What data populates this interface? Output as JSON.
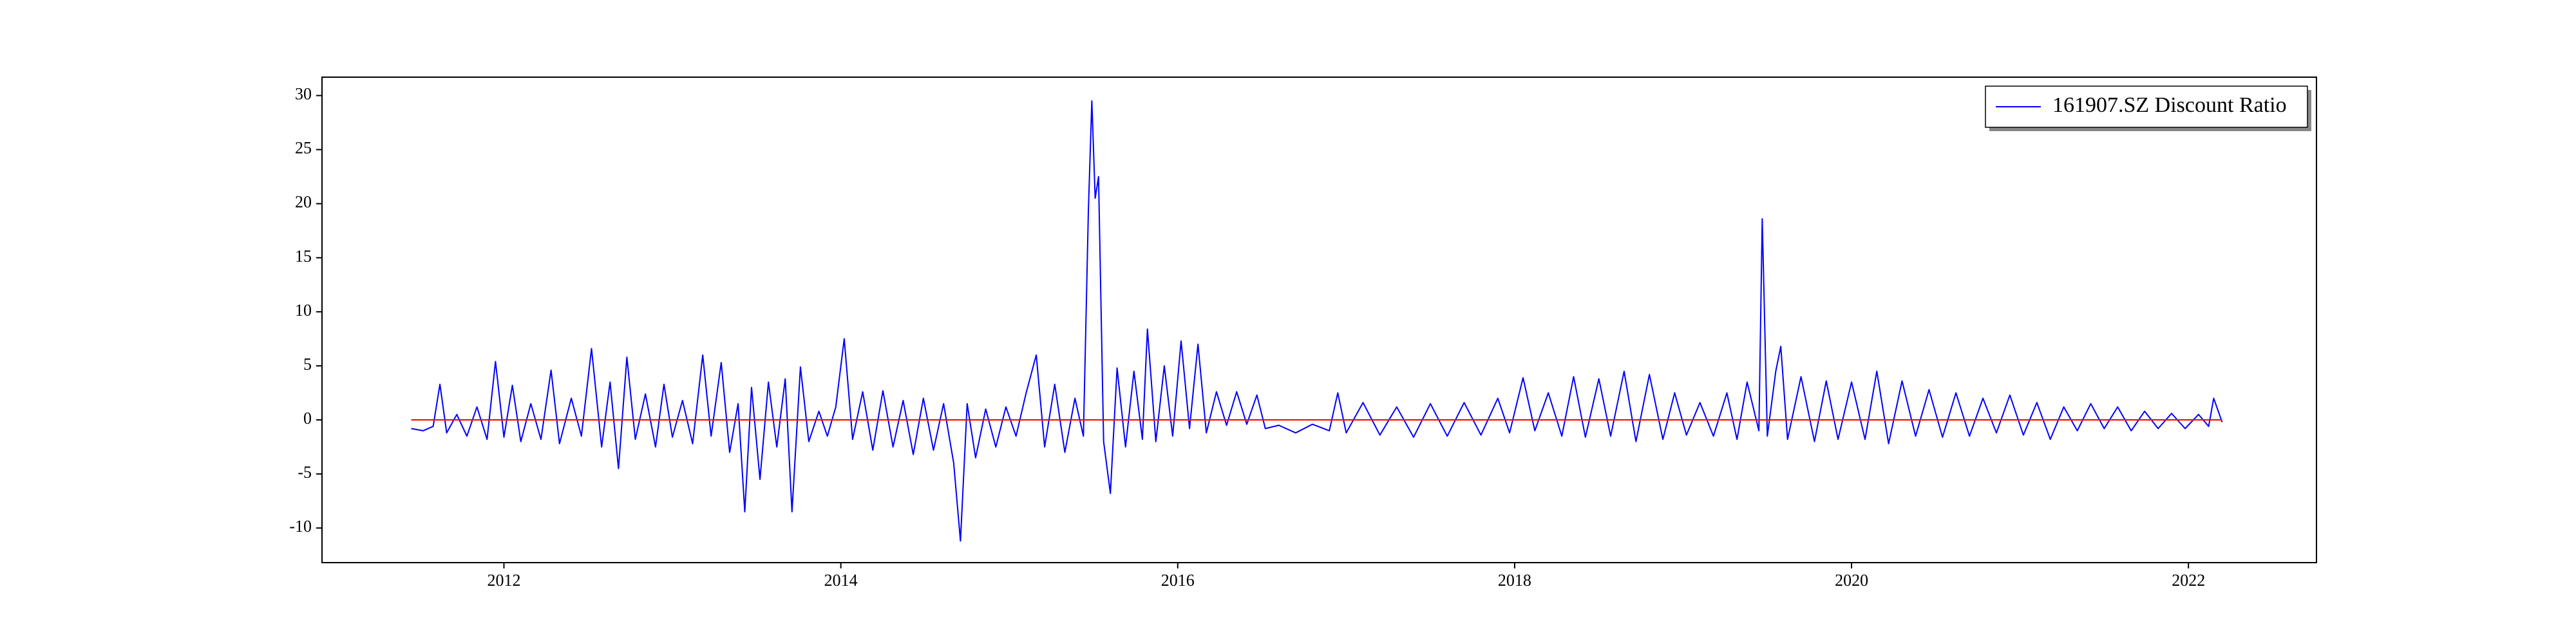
{
  "chart_data": {
    "type": "line",
    "xlim": [
      2010.92,
      2022.76
    ],
    "xticks": [
      2012,
      2014,
      2016,
      2018,
      2020,
      2022
    ],
    "ylim": [
      -13.2,
      31.7
    ],
    "yticks": [
      -10,
      -5,
      0,
      5,
      10,
      15,
      20,
      25,
      30
    ],
    "legend": "upper right",
    "series": [
      {
        "name": "161907.SZ Discount Ratio",
        "color": "#0000ff",
        "x": [
          2011.45,
          2011.52,
          2011.58,
          2011.62,
          2011.66,
          2011.72,
          2011.78,
          2011.84,
          2011.9,
          2011.95,
          2012.0,
          2012.05,
          2012.1,
          2012.16,
          2012.22,
          2012.28,
          2012.33,
          2012.4,
          2012.46,
          2012.52,
          2012.58,
          2012.63,
          2012.68,
          2012.73,
          2012.78,
          2012.84,
          2012.9,
          2012.95,
          2013.0,
          2013.06,
          2013.12,
          2013.18,
          2013.23,
          2013.29,
          2013.34,
          2013.39,
          2013.43,
          2013.47,
          2013.52,
          2013.57,
          2013.62,
          2013.67,
          2013.71,
          2013.76,
          2013.81,
          2013.87,
          2013.92,
          2013.97,
          2014.02,
          2014.07,
          2014.13,
          2014.19,
          2014.25,
          2014.31,
          2014.37,
          2014.43,
          2014.49,
          2014.55,
          2014.61,
          2014.67,
          2014.71,
          2014.75,
          2014.8,
          2014.86,
          2014.92,
          2014.98,
          2015.04,
          2015.1,
          2015.16,
          2015.21,
          2015.27,
          2015.33,
          2015.39,
          2015.44,
          2015.47,
          2015.49,
          2015.51,
          2015.53,
          2015.56,
          2015.6,
          2015.64,
          2015.69,
          2015.74,
          2015.79,
          2015.82,
          2015.87,
          2015.92,
          2015.97,
          2016.02,
          2016.07,
          2016.12,
          2016.17,
          2016.23,
          2016.29,
          2016.35,
          2016.41,
          2016.47,
          2016.52,
          2016.6,
          2016.7,
          2016.8,
          2016.9,
          2016.95,
          2017.0,
          2017.1,
          2017.2,
          2017.3,
          2017.4,
          2017.5,
          2017.6,
          2017.7,
          2017.8,
          2017.9,
          2017.97,
          2018.05,
          2018.12,
          2018.2,
          2018.28,
          2018.35,
          2018.42,
          2018.5,
          2018.57,
          2018.65,
          2018.72,
          2018.8,
          2018.88,
          2018.95,
          2019.02,
          2019.1,
          2019.18,
          2019.26,
          2019.32,
          2019.38,
          2019.45,
          2019.47,
          2019.5,
          2019.55,
          2019.58,
          2019.62,
          2019.7,
          2019.78,
          2019.85,
          2019.92,
          2020.0,
          2020.08,
          2020.15,
          2020.22,
          2020.3,
          2020.38,
          2020.46,
          2020.54,
          2020.62,
          2020.7,
          2020.78,
          2020.86,
          2020.94,
          2021.02,
          2021.1,
          2021.18,
          2021.26,
          2021.34,
          2021.42,
          2021.5,
          2021.58,
          2021.66,
          2021.74,
          2021.82,
          2021.9,
          2021.98,
          2022.06,
          2022.12,
          2022.15,
          2022.2
        ],
        "values": [
          -0.8,
          -1.0,
          -0.6,
          3.3,
          -1.2,
          0.5,
          -1.5,
          1.2,
          -1.8,
          5.4,
          -1.6,
          3.2,
          -2.0,
          1.5,
          -1.8,
          4.6,
          -2.2,
          2.0,
          -1.5,
          6.6,
          -2.5,
          3.5,
          -4.5,
          5.8,
          -1.8,
          2.4,
          -2.5,
          3.3,
          -1.6,
          1.8,
          -2.2,
          6.0,
          -1.5,
          5.3,
          -3.0,
          1.5,
          -8.5,
          3.0,
          -5.5,
          3.5,
          -2.5,
          3.8,
          -8.5,
          4.9,
          -2.0,
          0.8,
          -1.5,
          1.2,
          7.5,
          -1.8,
          2.6,
          -2.8,
          2.7,
          -2.5,
          1.8,
          -3.2,
          2.0,
          -2.8,
          1.5,
          -4.0,
          -11.2,
          1.5,
          -3.5,
          1.0,
          -2.5,
          1.2,
          -1.5,
          2.5,
          6.0,
          -2.5,
          3.3,
          -3.0,
          2.0,
          -1.5,
          19.5,
          29.5,
          20.5,
          22.5,
          -2.0,
          -6.8,
          4.8,
          -2.5,
          4.5,
          -1.8,
          8.4,
          -2.0,
          5.0,
          -1.5,
          7.3,
          -0.8,
          7.0,
          -1.2,
          2.6,
          -0.5,
          2.6,
          -0.4,
          2.3,
          -0.8,
          -0.5,
          -1.2,
          -0.4,
          -1.0,
          2.5,
          -1.2,
          1.6,
          -1.4,
          1.2,
          -1.6,
          1.5,
          -1.5,
          1.6,
          -1.4,
          2.0,
          -1.2,
          3.9,
          -1.0,
          2.5,
          -1.5,
          4.0,
          -1.6,
          3.8,
          -1.5,
          4.5,
          -2.0,
          4.2,
          -1.8,
          2.5,
          -1.4,
          1.6,
          -1.5,
          2.5,
          -1.8,
          3.5,
          -1.0,
          18.6,
          -1.5,
          4.5,
          6.8,
          -1.8,
          4.0,
          -2.0,
          3.6,
          -1.8,
          3.5,
          -1.8,
          4.5,
          -2.2,
          3.6,
          -1.5,
          2.8,
          -1.6,
          2.5,
          -1.5,
          2.0,
          -1.2,
          2.3,
          -1.4,
          1.6,
          -1.8,
          1.2,
          -1.0,
          1.5,
          -0.8,
          1.2,
          -1.0,
          0.8,
          -0.8,
          0.6,
          -0.8,
          0.5,
          -0.6,
          2.0,
          -0.2
        ]
      },
      {
        "color": "#ff0000",
        "x": [
          2011.45,
          2022.2
        ],
        "values": [
          0,
          0
        ]
      }
    ]
  }
}
